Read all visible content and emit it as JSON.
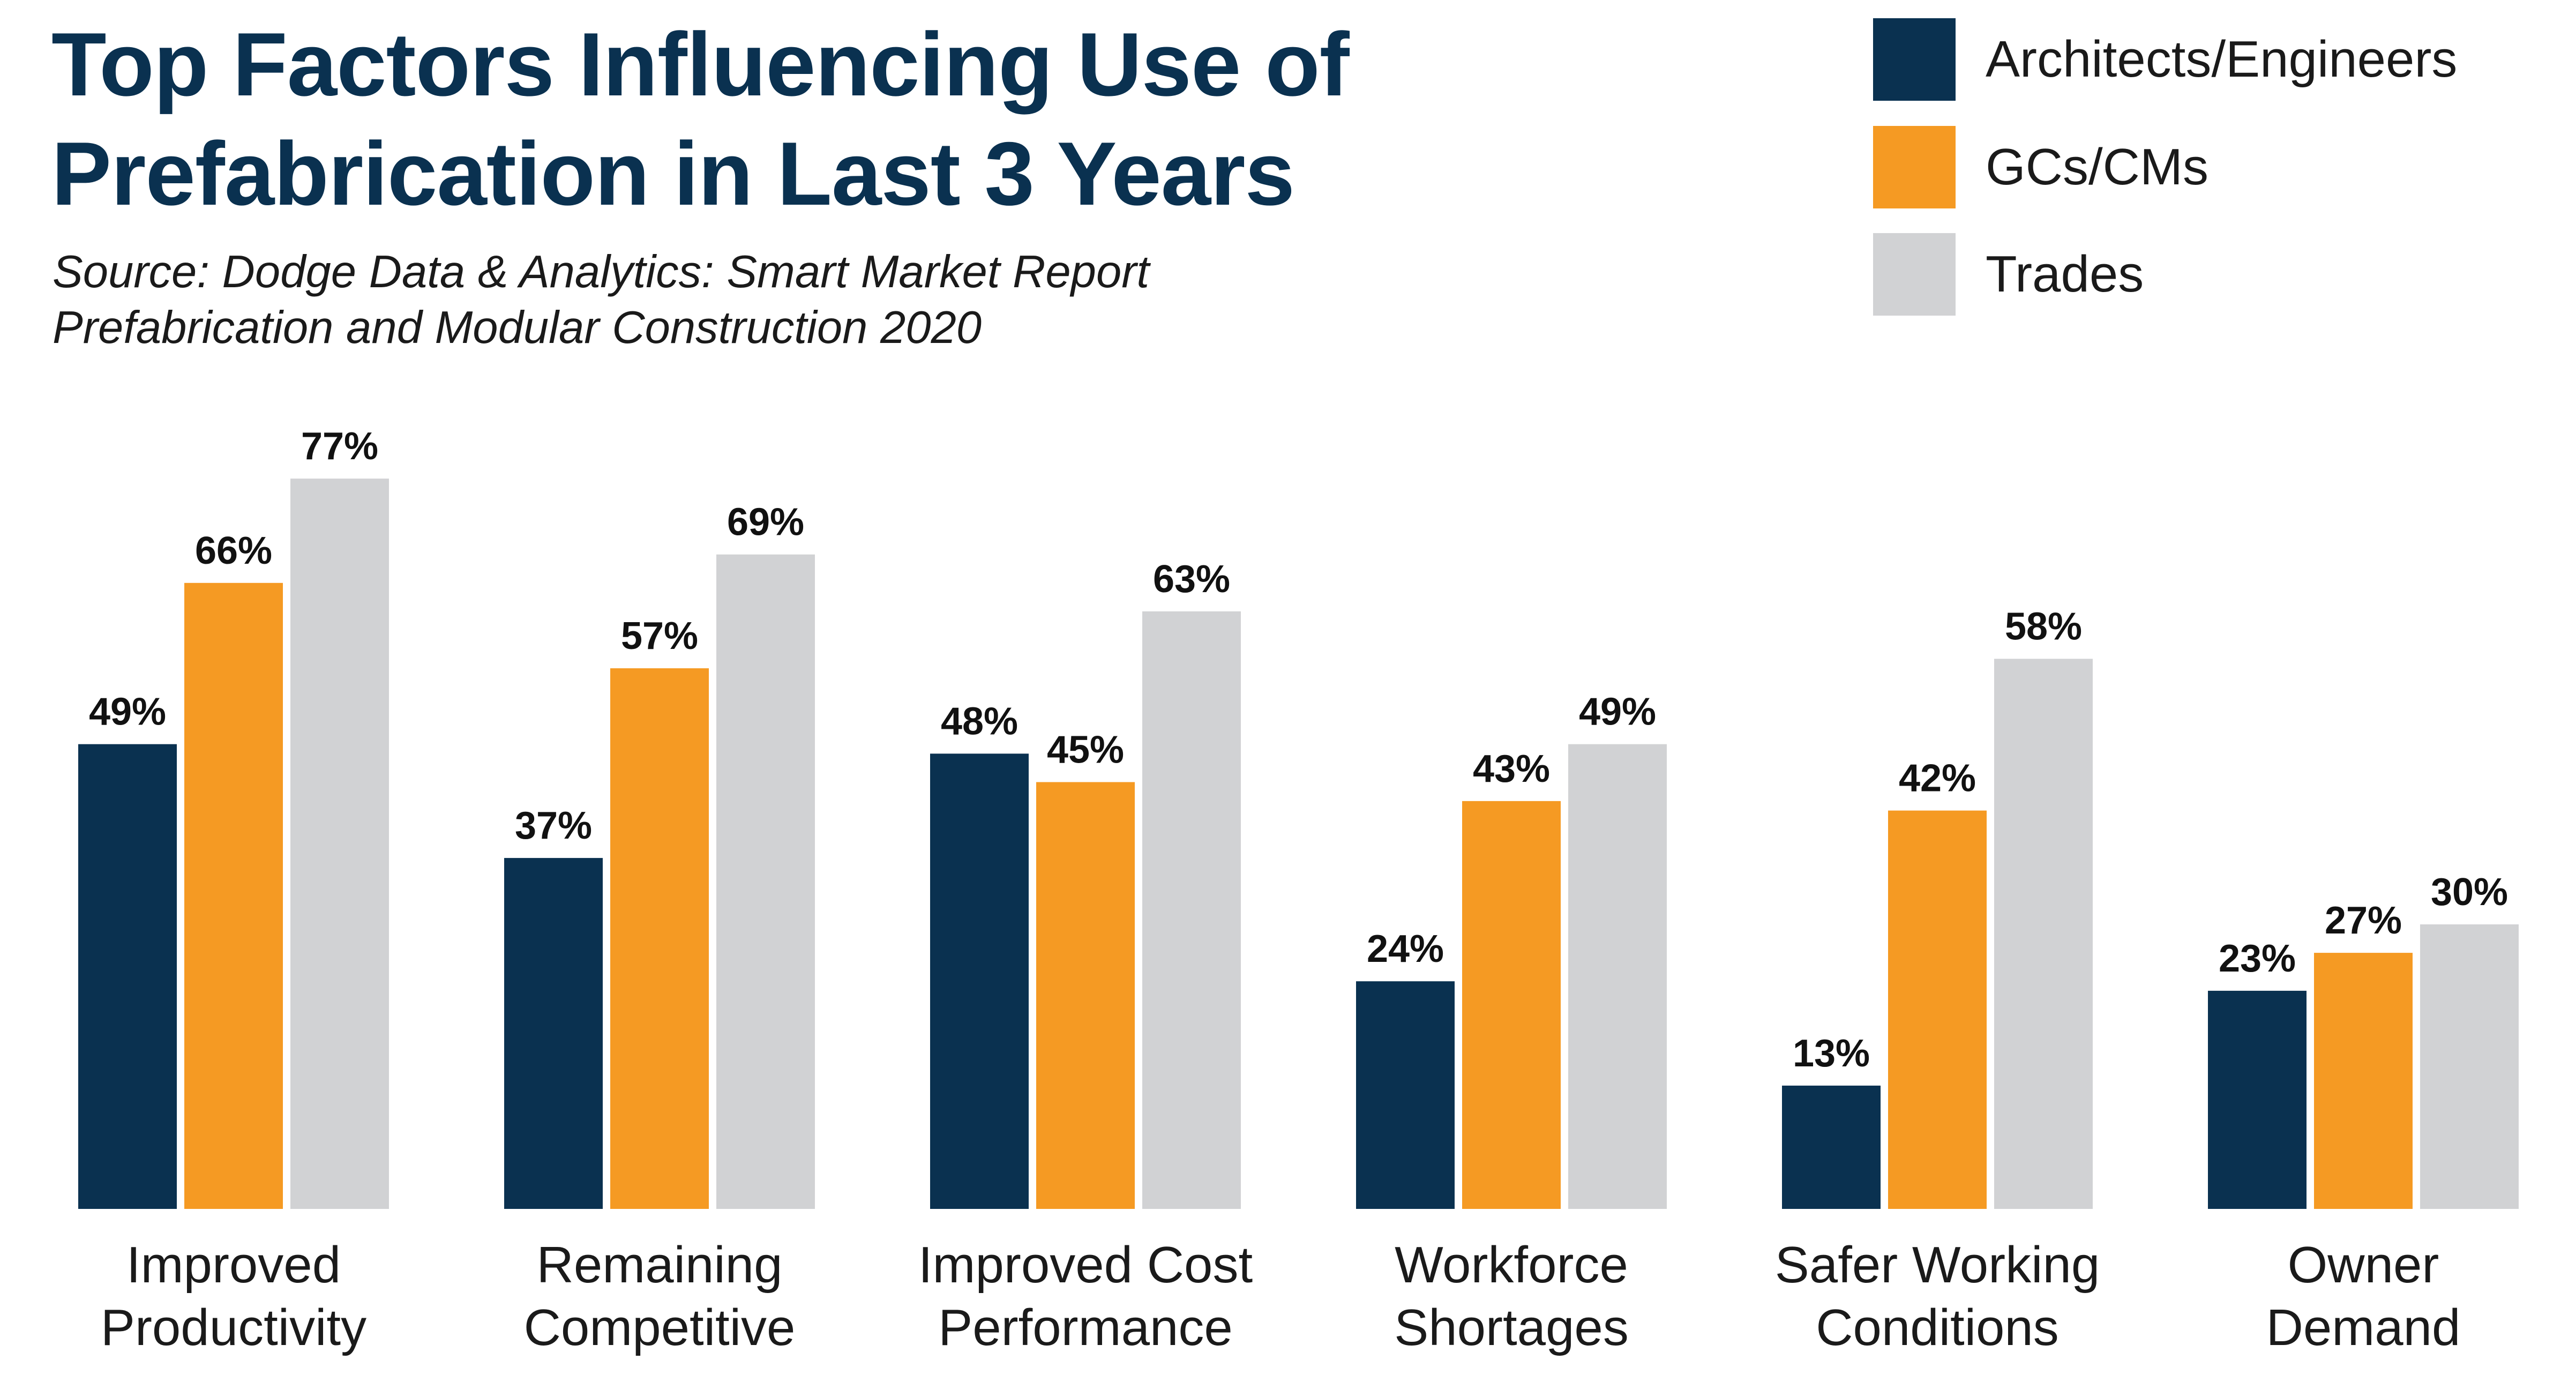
{
  "chart_data": {
    "type": "bar",
    "title_lines": [
      "Top Factors Influencing Use of",
      "Prefabrication in Last 3 Years"
    ],
    "subtitle_lines": [
      "Source: Dodge Data & Analytics: Smart Market Report",
      "Prefabrication and Modular Construction 2020"
    ],
    "categories": [
      [
        "Improved",
        "Productivity"
      ],
      [
        "Remaining",
        "Competitive"
      ],
      [
        "Improved Cost",
        "Performance"
      ],
      [
        "Workforce",
        "Shortages"
      ],
      [
        "Safer Working",
        "Conditions"
      ],
      [
        "Owner",
        "Demand"
      ]
    ],
    "series": [
      {
        "name": "Architects/Engineers",
        "color": "#0a3150",
        "values": [
          49,
          37,
          48,
          24,
          13,
          23
        ],
        "labels": [
          "49%",
          "37%",
          "48%",
          "24%",
          "13%",
          "23%"
        ]
      },
      {
        "name": "GCs/CMs",
        "color": "#f59a23",
        "values": [
          66,
          57,
          45,
          43,
          42,
          27
        ],
        "labels": [
          "66%",
          "57%",
          "45%",
          "43%",
          "42%",
          "27%"
        ]
      },
      {
        "name": "Trades",
        "color": "#d1d2d4",
        "values": [
          77,
          69,
          63,
          49,
          58,
          30
        ],
        "labels": [
          "77%",
          "69%",
          "63%",
          "49%",
          "58%",
          "30%"
        ]
      }
    ],
    "unit": "%",
    "ylim": [
      0,
      100
    ],
    "grid": false,
    "legend_position": "top-right"
  }
}
